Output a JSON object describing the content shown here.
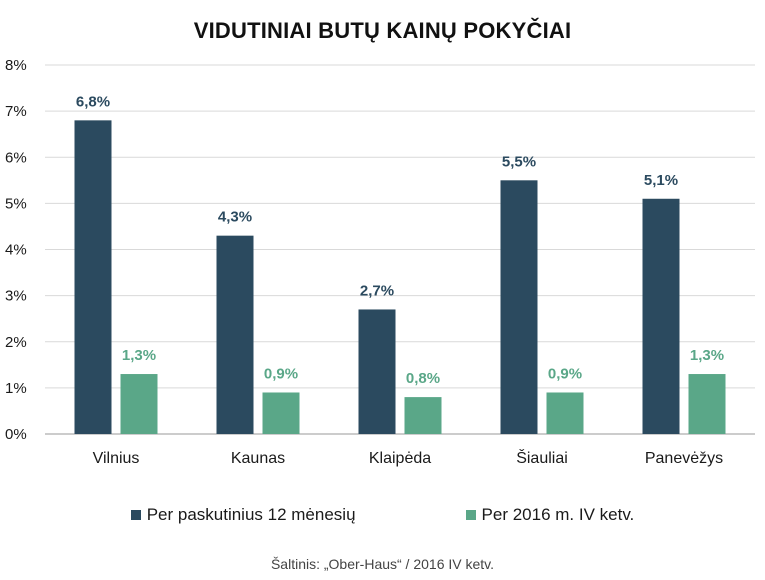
{
  "chart_data": {
    "type": "bar",
    "title": "VIDUTINIAI BUTŲ KAINŲ POKYČIAI",
    "categories": [
      "Vilnius",
      "Kaunas",
      "Klaipėda",
      "Šiauliai",
      "Panevėžys"
    ],
    "series": [
      {
        "name": "Per paskutinius 12 mėnesių",
        "values": [
          6.8,
          4.3,
          2.7,
          5.5,
          5.1
        ],
        "labels": [
          "6,8%",
          "4,3%",
          "2,7%",
          "5,5%",
          "5,1%"
        ],
        "color": "#2b4a5f"
      },
      {
        "name": "Per 2016 m. IV ketv.",
        "values": [
          1.3,
          0.9,
          0.8,
          0.9,
          1.3
        ],
        "labels": [
          "1,3%",
          "0,9%",
          "0,8%",
          "0,9%",
          "1,3%"
        ],
        "color": "#5aa788"
      }
    ],
    "ylim": [
      0,
      8
    ],
    "yticks": [
      "0%",
      "1%",
      "2%",
      "3%",
      "4%",
      "5%",
      "6%",
      "7%",
      "8%"
    ],
    "grid": true,
    "legend": "bottom",
    "source": "Šaltinis: „Ober-Haus“ / 2016 IV ketv."
  }
}
